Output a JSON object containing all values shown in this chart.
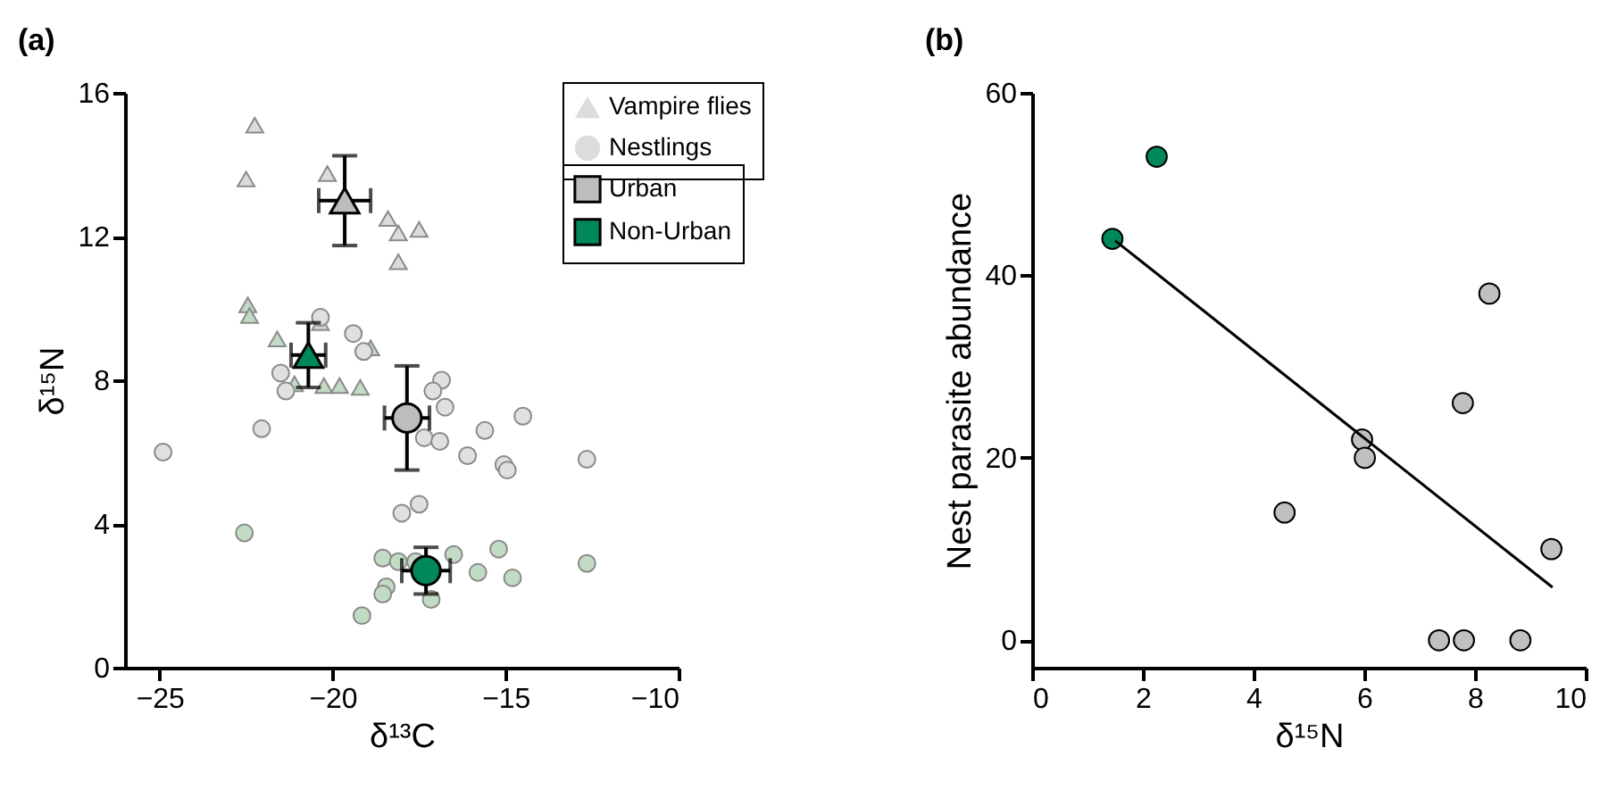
{
  "chart_data": [
    {
      "type": "scatter",
      "title": "(a)",
      "xlabel": "δ¹³C",
      "ylabel": "δ¹⁵N",
      "xlim": [
        -26,
        -10
      ],
      "ylim": [
        0,
        16
      ],
      "xticks": [
        -25,
        -20,
        -15,
        -10
      ],
      "yticks": [
        0,
        4,
        8,
        12,
        16
      ],
      "legend": "top right",
      "series": [
        {
          "name": "Vampire flies",
          "marker": "triangle",
          "color": "#dcdcdc",
          "x": [
            -22.25,
            -22.5,
            -20.15,
            -18.4,
            -17.5,
            -18.1,
            -18.1
          ],
          "values": [
            15.1,
            13.6,
            13.75,
            12.5,
            12.2,
            12.1,
            11.3
          ]
        },
        {
          "marker": "triangle",
          "color": "#c2dbc4",
          "x": [
            -22.45,
            -22.4,
            -21.6,
            -21.1,
            -20.25,
            -19.8,
            -19.2,
            -18.9,
            -20.35
          ],
          "values": [
            10.1,
            9.8,
            9.15,
            7.9,
            7.85,
            7.85,
            7.8,
            8.9,
            9.6
          ]
        },
        {
          "name": "Nestlings",
          "marker": "circle",
          "color": "#e0e0e0",
          "x": [
            -24.9,
            -22.05,
            -21.5,
            -21.35,
            -20.35,
            -19.4,
            -19.1,
            -16.85,
            -17.1,
            -16.75,
            -14.5,
            -15.6,
            -17.35,
            -16.9,
            -16.1,
            -15.05,
            -14.95,
            -12.65,
            -17.5,
            -18.0
          ],
          "values": [
            6.0,
            6.65,
            8.2,
            7.7,
            9.75,
            9.3,
            8.8,
            8.0,
            7.7,
            7.25,
            7.0,
            6.6,
            6.4,
            6.3,
            5.9,
            5.65,
            5.5,
            5.8,
            4.55,
            4.3
          ]
        },
        {
          "marker": "circle",
          "color": "#c2dbc4",
          "x": [
            -22.55,
            -18.55,
            -18.1,
            -17.6,
            -16.5,
            -15.2,
            -15.8,
            -14.8,
            -12.65,
            -18.45,
            -18.55,
            -19.15,
            -17.15
          ],
          "values": [
            3.75,
            3.05,
            2.95,
            2.95,
            3.15,
            3.3,
            2.65,
            2.5,
            2.9,
            2.25,
            2.05,
            1.45,
            1.9
          ]
        },
        {
          "marker": "triangle",
          "color": "#bdbdbd",
          "x": [
            -19.65
          ],
          "values": [
            13.0
          ],
          "errors": [
            1.25
          ],
          "xerrors": [
            0.75
          ]
        },
        {
          "marker": "triangle",
          "color": "#00875a",
          "x": [
            -20.7
          ],
          "values": [
            8.7
          ],
          "errors": [
            0.9
          ],
          "xerrors": [
            0.5
          ]
        },
        {
          "name": "Urban",
          "marker": "circle",
          "color": "#bdbdbd",
          "x": [
            -17.85
          ],
          "values": [
            6.95
          ],
          "errors": [
            1.45
          ],
          "xerrors": [
            0.65
          ]
        },
        {
          "name": "Non-Urban",
          "marker": "circle",
          "color": "#00875a",
          "x": [
            -17.3
          ],
          "values": [
            2.7
          ],
          "errors": [
            0.65
          ],
          "xerrors": [
            0.7
          ]
        }
      ]
    },
    {
      "type": "scatter",
      "title": "(b)",
      "xlabel": "δ¹⁵N",
      "ylabel": "Nest parasite abundance",
      "xlim": [
        0,
        10
      ],
      "ylim": [
        -3,
        60
      ],
      "xticks": [
        0,
        2,
        4,
        6,
        8,
        10
      ],
      "yticks": [
        0,
        20,
        40,
        60
      ],
      "series": [
        {
          "marker": "circle",
          "color": "#00875a",
          "x": [
            1.45,
            2.25
          ],
          "values": [
            44,
            53
          ]
        },
        {
          "marker": "circle",
          "color": "#c0c0c0",
          "x": [
            4.56,
            5.96,
            6.01,
            7.78,
            8.26,
            7.35,
            7.8,
            8.82,
            9.38
          ],
          "values": [
            14,
            22,
            20,
            26,
            38,
            0,
            0,
            0,
            10
          ]
        },
        {
          "type": "line",
          "color": "#000000",
          "x": [
            1.5,
            9.4
          ],
          "values": [
            43.8,
            5.8
          ]
        }
      ]
    }
  ]
}
